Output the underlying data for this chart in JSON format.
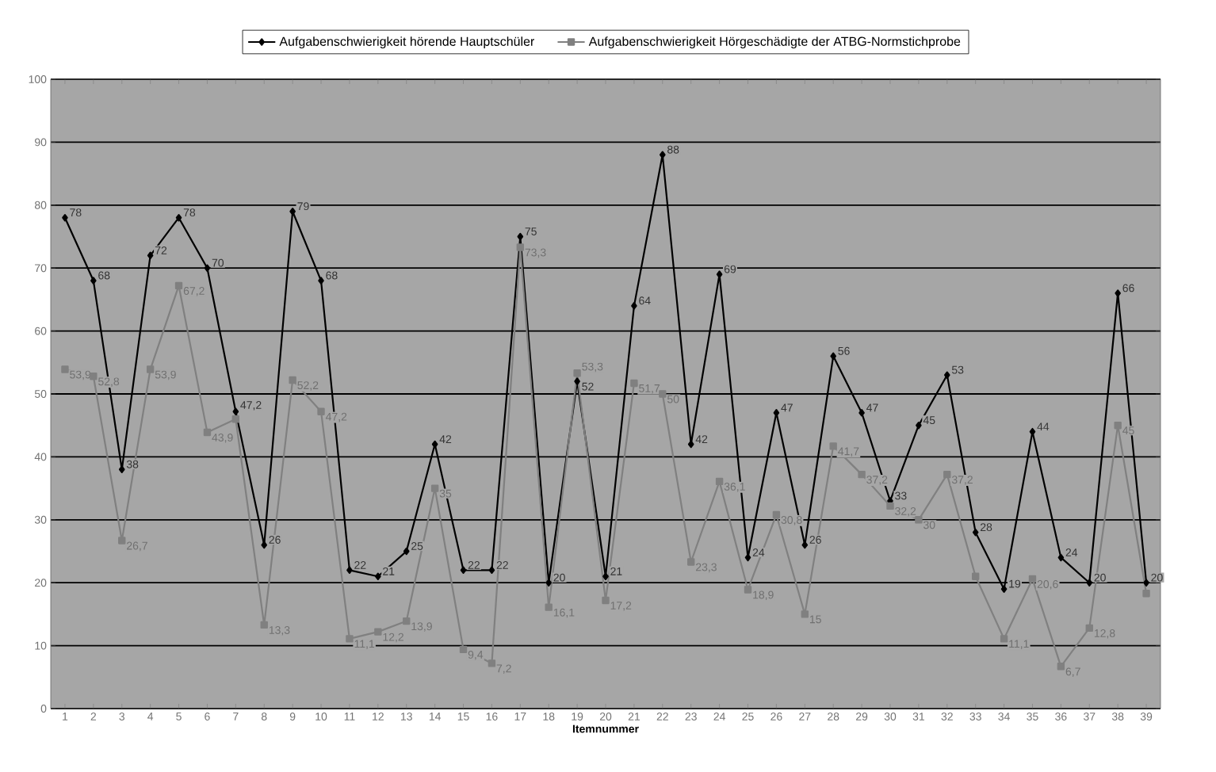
{
  "chart_data": {
    "type": "line",
    "xlabel": "Itemnummer",
    "categories": [
      "1",
      "2",
      "3",
      "4",
      "5",
      "6",
      "7",
      "8",
      "9",
      "10",
      "11",
      "12",
      "13",
      "14",
      "15",
      "16",
      "17",
      "18",
      "19",
      "20",
      "21",
      "22",
      "23",
      "24",
      "25",
      "26",
      "27",
      "28",
      "29",
      "30",
      "31",
      "32",
      "33",
      "34",
      "35",
      "36",
      "37",
      "38",
      "39"
    ],
    "series": [
      {
        "name": "Aufgabenschwierigkeit hörende Hauptschüler",
        "color": "#000000",
        "marker": "diamond",
        "values": [
          78,
          68,
          38,
          72,
          78,
          70,
          47.2,
          26,
          79,
          68,
          22,
          21,
          25,
          42,
          22,
          22,
          75,
          20,
          52,
          21,
          64,
          88,
          42,
          69,
          24,
          47,
          26,
          56,
          47,
          33,
          45,
          53,
          28,
          19,
          44,
          24,
          20,
          66,
          20
        ],
        "value_labels": [
          "78",
          "68",
          "38",
          "72",
          "78",
          "70",
          "47,2",
          "26",
          "79",
          "68",
          "22",
          "21",
          "25",
          "42",
          "22",
          "22",
          "75",
          "20",
          "52",
          "21",
          "64",
          "88",
          "42",
          "69",
          "24",
          "47",
          "26",
          "56",
          "47",
          "33",
          "45",
          "53",
          "28",
          "19",
          "44",
          "24",
          "20",
          "66",
          "20"
        ]
      },
      {
        "name": "Aufgabenschwierigkeit Hörgeschädigte der ATBG-Normstichprobe",
        "color": "#808080",
        "marker": "square",
        "values": [
          53.9,
          52.8,
          26.7,
          53.9,
          67.2,
          43.9,
          46,
          13.3,
          52.2,
          47.2,
          11.1,
          12.2,
          13.9,
          35,
          9.4,
          7.2,
          73.3,
          16.1,
          53.3,
          17.2,
          51.7,
          50,
          23.3,
          36.1,
          18.9,
          30.8,
          15,
          41.7,
          37.2,
          32.2,
          30,
          37.2,
          21,
          11.1,
          20.6,
          6.7,
          12.8,
          45,
          18.3
        ],
        "value_labels": [
          "53,9",
          "52,8",
          "26,7",
          "53,9",
          "67,2",
          "43,9",
          null,
          "13,3",
          "52,2",
          "47,2",
          "11,1",
          "12,2",
          "13,9",
          "35",
          "9,4",
          "7,2",
          "73,3",
          "16,1",
          "53,3",
          "17,2",
          "51,7",
          "50",
          "23,3",
          "36,1",
          "18,9",
          "30,8",
          "15",
          "41,7",
          "37,2",
          "32,2",
          "30",
          "37,2",
          null,
          "11,1",
          "20,6",
          "6,7",
          "12,8",
          "45",
          null
        ]
      }
    ],
    "ylim": [
      0,
      100
    ],
    "yticks": [
      0,
      10,
      20,
      30,
      40,
      50,
      60,
      70,
      80,
      90,
      100
    ],
    "grid": "y",
    "legend": "top",
    "line_style": "solid"
  }
}
